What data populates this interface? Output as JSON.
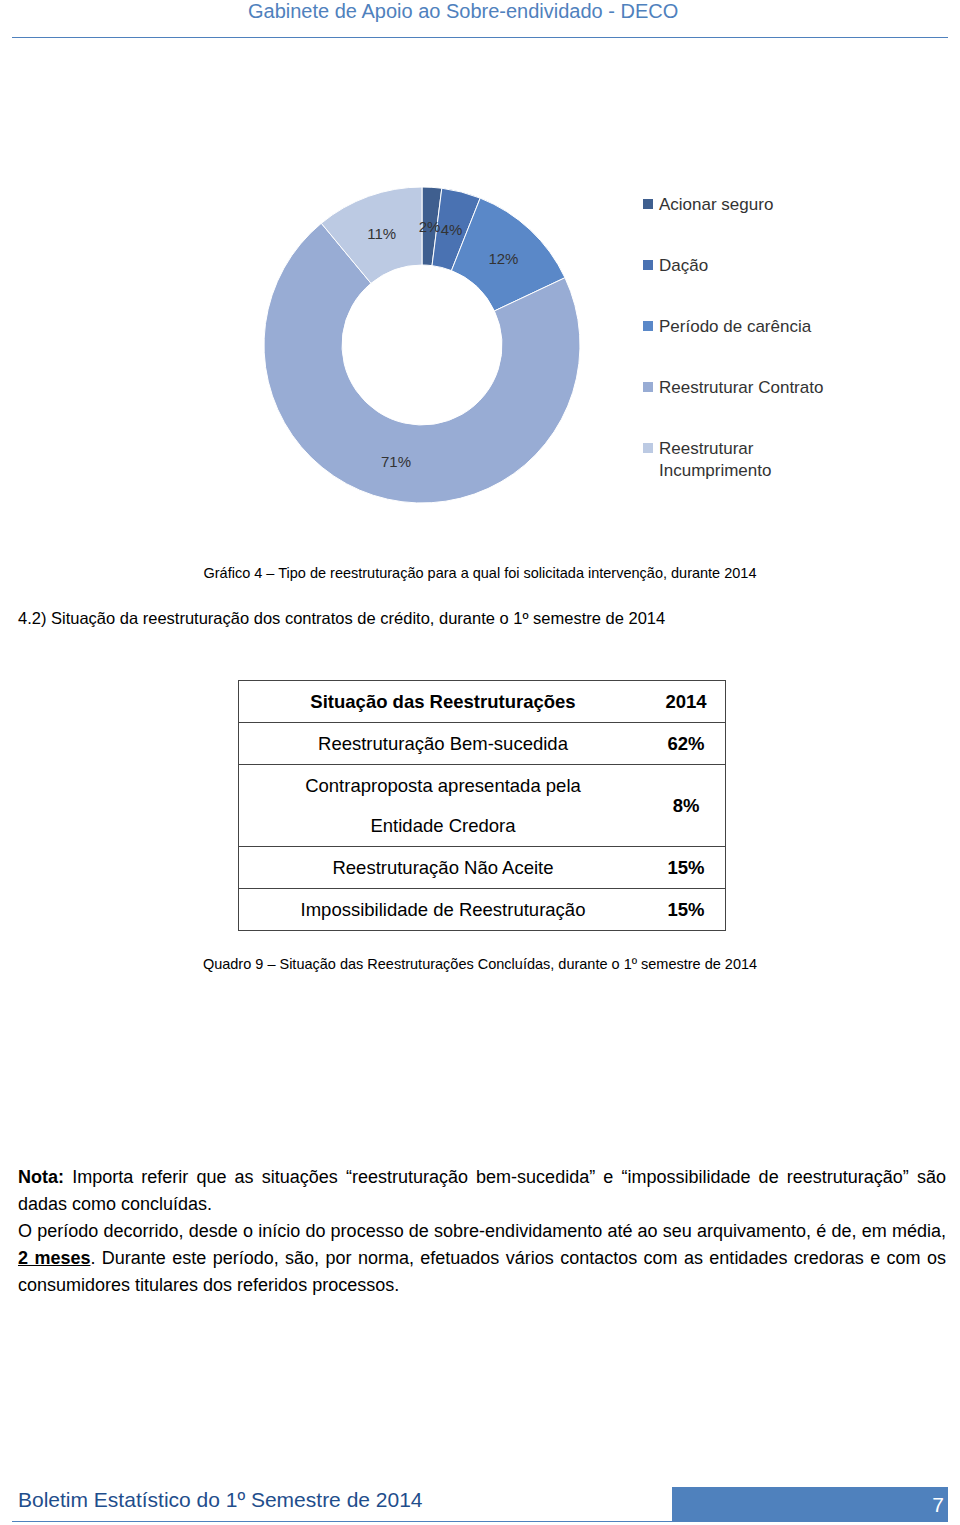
{
  "header": {
    "title": "Gabinete de Apoio ao Sobre-endividado - DECO"
  },
  "chart_data": {
    "type": "donut",
    "title": "Gráfico 4 – Tipo de reestruturação para a qual foi solicitada intervenção, durante 2014",
    "categories": [
      "Acionar seguro",
      "Dação",
      "Período de carência",
      "Reestruturar Contrato",
      "Reestruturar Incumprimento"
    ],
    "values": [
      2,
      4,
      12,
      71,
      11
    ],
    "value_labels": [
      "2%",
      "4%",
      "12%",
      "71%",
      "11%"
    ],
    "colors": [
      "#3f5f8f",
      "#4a72b2",
      "#5a88c8",
      "#98acd4",
      "#bccae3"
    ],
    "data_labels": true,
    "legend": "right"
  },
  "section": {
    "title": "4.2) Situação da reestruturação dos contratos de crédito, durante o 1º semestre de 2014"
  },
  "table": {
    "rows": [
      [
        "Situação das Reestruturações",
        "2014"
      ],
      [
        "Reestruturação Bem-sucedida",
        "62%"
      ],
      [
        "Contraproposta apresentada pela Entidade Credora",
        "8%"
      ],
      [
        "Reestruturação Não Aceite",
        "15%"
      ],
      [
        "Impossibilidade de Reestruturação",
        "15%"
      ]
    ],
    "caption": "Quadro 9 – Situação das Reestruturações Concluídas, durante o 1º semestre de 2014"
  },
  "note": {
    "label": "Nota:",
    "text": "Importa referir que as situações “reestruturação bem-sucedida” e “impossibilidade de reestruturação” são dadas como concluídas.",
    "paragraph": {
      "before": "O período decorrido, desde o início do processo de sobre-endividamento até ao seu arquivamento, é de, em média, ",
      "emphasis": "2 meses",
      "after": ". Durante este período, são, por norma, efetuados vários contactos com as entidades credoras e com os consumidores titulares dos referidos processos."
    }
  },
  "footer": {
    "title": "Boletim Estatístico do 1º Semestre de 2014",
    "page": "7"
  }
}
